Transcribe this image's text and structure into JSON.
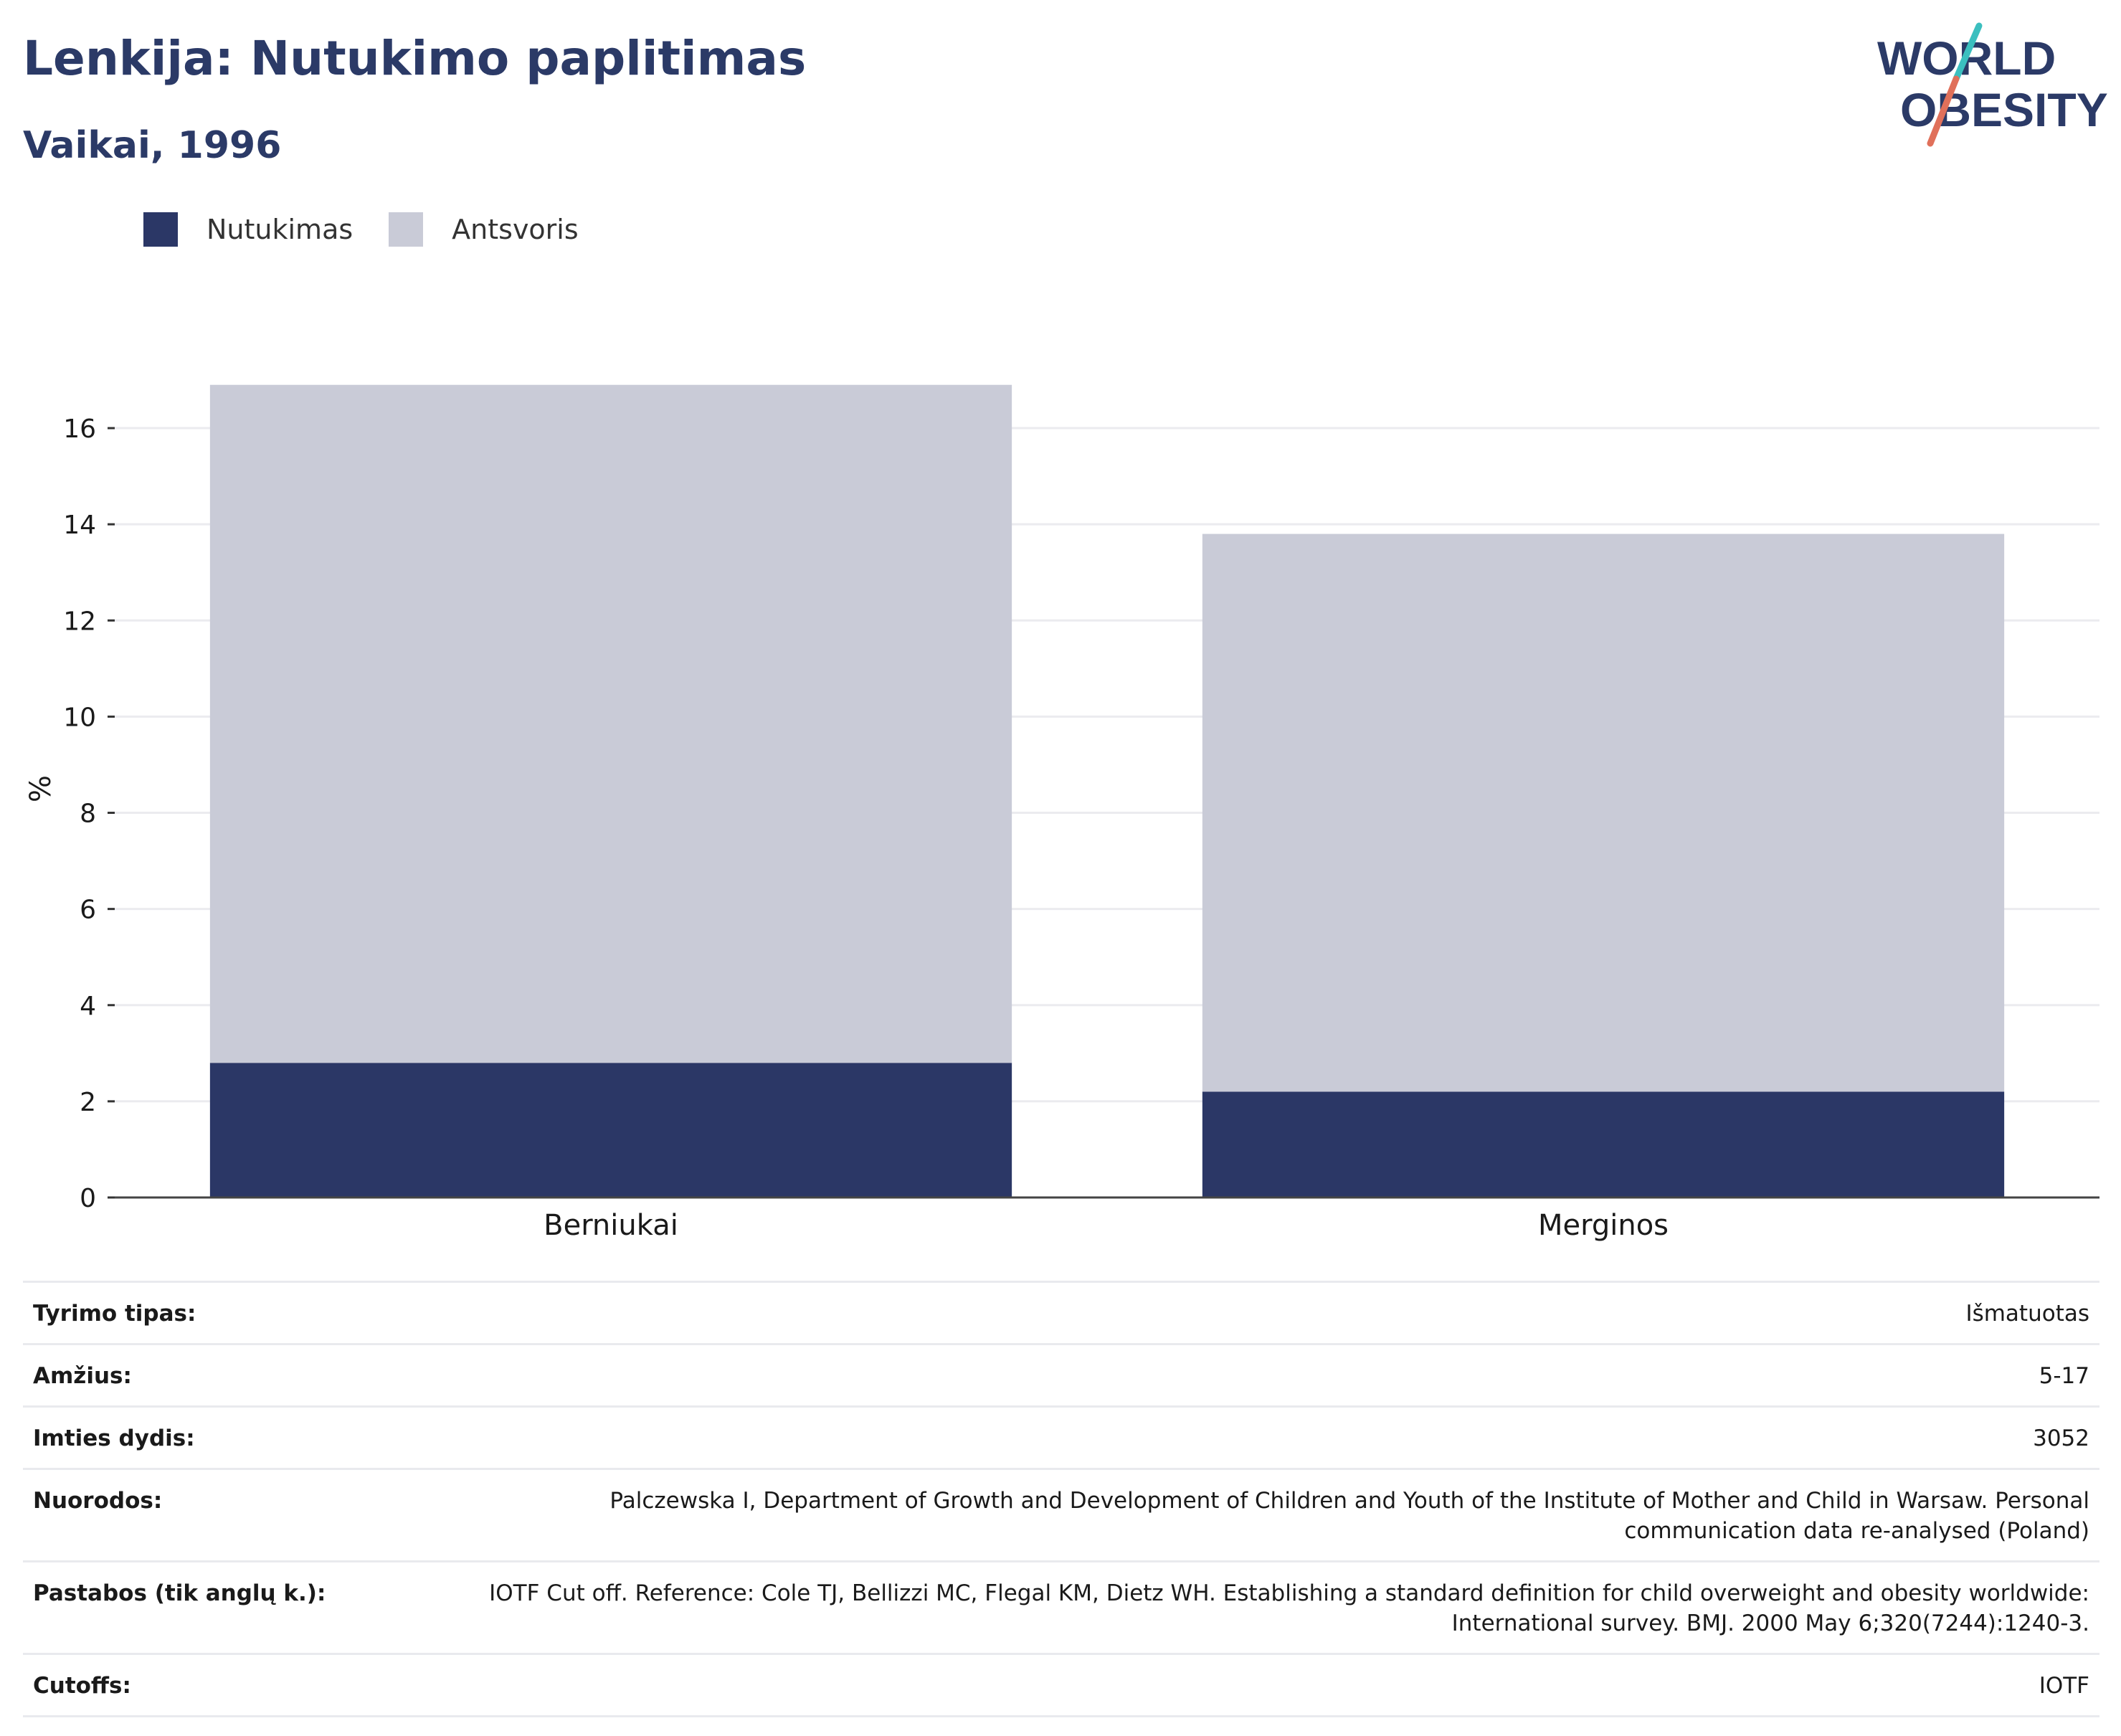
{
  "header": {
    "title": "Lenkija: Nutukimo paplitimas",
    "subtitle": "Vaikai, 1996"
  },
  "logo": {
    "line1": "WORLD",
    "line2": "OBESITY",
    "colors": {
      "text": "#2b3a67",
      "slash_top": "#3bbfbf",
      "slash_bottom": "#e0705a"
    }
  },
  "legend": {
    "items": [
      {
        "label": "Nutukimas",
        "color": "#2b3766"
      },
      {
        "label": "Antsvoris",
        "color": "#c9cbd7"
      }
    ]
  },
  "chart_data": {
    "type": "bar",
    "stacked": true,
    "categories": [
      "Berniukai",
      "Merginos"
    ],
    "series": [
      {
        "name": "Nutukimas",
        "color": "#2b3766",
        "values": [
          2.8,
          2.2
        ]
      },
      {
        "name": "Antsvoris",
        "color": "#c9cbd7",
        "values": [
          14.1,
          11.6
        ]
      }
    ],
    "ylabel": "%",
    "ylim": [
      0,
      17
    ],
    "yticks": [
      0,
      2,
      4,
      6,
      8,
      10,
      12,
      14,
      16
    ],
    "grid": true,
    "legend_position": "top-left"
  },
  "info": {
    "rows": [
      {
        "key": "Tyrimo tipas:",
        "value": "Išmatuotas"
      },
      {
        "key": "Amžius:",
        "value": "5-17"
      },
      {
        "key": "Imties dydis:",
        "value": "3052"
      },
      {
        "key": "Nuorodos:",
        "value": "Palczewska I, Department of Growth and Development of Children and Youth of the Institute of Mother and Child in Warsaw. Personal communication data re-analysed (Poland)"
      },
      {
        "key": "Pastabos (tik anglų k.):",
        "value": "IOTF Cut off. Reference: Cole TJ, Bellizzi MC, Flegal KM, Dietz WH. Establishing a standard definition for child overweight and obesity worldwide: International survey. BMJ. 2000 May 6;320(7244):1240-3."
      },
      {
        "key": "Cutoffs:",
        "value": "IOTF"
      }
    ]
  }
}
